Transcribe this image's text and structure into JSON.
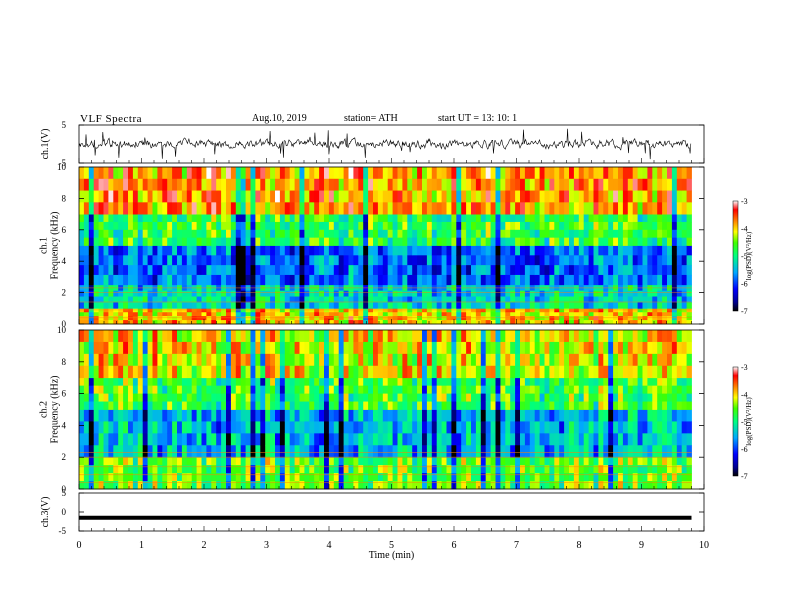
{
  "header": {
    "title": "VLF Spectra",
    "date": "Aug.10, 2019",
    "station": "station= ATH",
    "start": "start  UT  =    13: 10: 1"
  },
  "chart_data": [
    {
      "type": "line",
      "panel": "ch1-waveform",
      "ylabel": "ch.1(V)",
      "ylim": [
        -5,
        5
      ],
      "yticks": [
        "5",
        "-5"
      ],
      "x_range_min": [
        0,
        9.8
      ],
      "description_values": "noisy waveform centred near 0 V, mostly within ±2 V with spikes to ±4 V"
    },
    {
      "type": "heatmap",
      "panel": "ch1-spectrogram",
      "ylabel": "ch.1\nFrequency (kHz)",
      "ylabel_lines": [
        "ch.1",
        "Frequency (kHz)"
      ],
      "ylim": [
        0,
        10
      ],
      "yticks": [
        "0",
        "2",
        "4",
        "6",
        "8",
        "10"
      ],
      "colorbar": {
        "label": "log(PSD)(V²/Hz)",
        "range": [
          -7,
          -3
        ],
        "ticks": [
          "-3",
          "-4",
          "-5",
          "-6",
          "-7"
        ]
      },
      "bands": [
        {
          "f_kHz": [
            0,
            1
          ],
          "logPSD": -4.0
        },
        {
          "f_kHz": [
            1,
            2.5
          ],
          "logPSD": -5.3
        },
        {
          "f_kHz": [
            2.5,
            5
          ],
          "logPSD": -5.9
        },
        {
          "f_kHz": [
            5,
            7
          ],
          "logPSD": -4.8
        },
        {
          "f_kHz": [
            7,
            10
          ],
          "logPSD": -3.8
        }
      ]
    },
    {
      "type": "heatmap",
      "panel": "ch2-spectrogram",
      "ylabel_lines": [
        "ch.2",
        "Frequency (kHz)"
      ],
      "ylim": [
        0,
        10
      ],
      "yticks": [
        "0",
        "2",
        "4",
        "6",
        "8",
        "10"
      ],
      "colorbar": {
        "label": "log(PSD)(V²/Hz)",
        "range": [
          -7,
          -3
        ],
        "ticks": [
          "-3",
          "-4",
          "-5",
          "-6",
          "-7"
        ]
      },
      "bands": [
        {
          "f_kHz": [
            0,
            2
          ],
          "logPSD": -4.6
        },
        {
          "f_kHz": [
            2,
            5
          ],
          "logPSD": -5.5
        },
        {
          "f_kHz": [
            5,
            7
          ],
          "logPSD": -4.7
        },
        {
          "f_kHz": [
            7,
            10
          ],
          "logPSD": -4.1
        }
      ]
    },
    {
      "type": "line",
      "panel": "ch3-waveform",
      "ylabel": "ch.3(V)",
      "ylim": [
        -5,
        5
      ],
      "yticks": [
        "5",
        "0",
        "-5"
      ],
      "value_V": -1.5
    }
  ],
  "xaxis": {
    "label": "Time  (min)",
    "range": [
      0,
      10
    ],
    "data_end": 9.8,
    "ticks": [
      "0",
      "1",
      "2",
      "3",
      "4",
      "5",
      "6",
      "7",
      "8",
      "9",
      "10"
    ]
  }
}
